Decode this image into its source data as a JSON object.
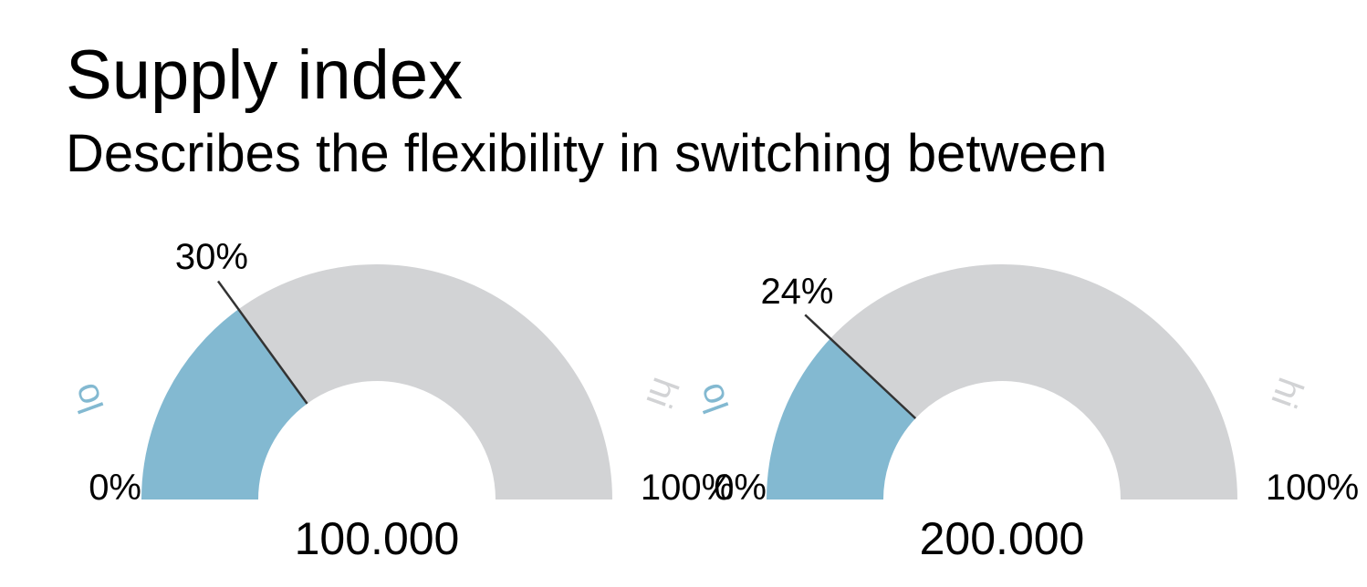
{
  "chart_data": {
    "type": "gauge",
    "title": "Supply index",
    "subtitle": "Describes the flexibility in switching between",
    "min_label": "0%",
    "max_label": "100%",
    "low_label": "lo",
    "high_label": "hi",
    "colors": {
      "fill": "#83b9d1",
      "track": "#d2d3d5",
      "needle": "#333333",
      "low_label": "#83b9d1",
      "high_label": "#d2d3d5"
    },
    "gauges": [
      {
        "value": 0.3,
        "value_label": "30%",
        "caption": "100.000"
      },
      {
        "value": 0.24,
        "value_label": "24%",
        "caption": "200.000"
      }
    ]
  }
}
